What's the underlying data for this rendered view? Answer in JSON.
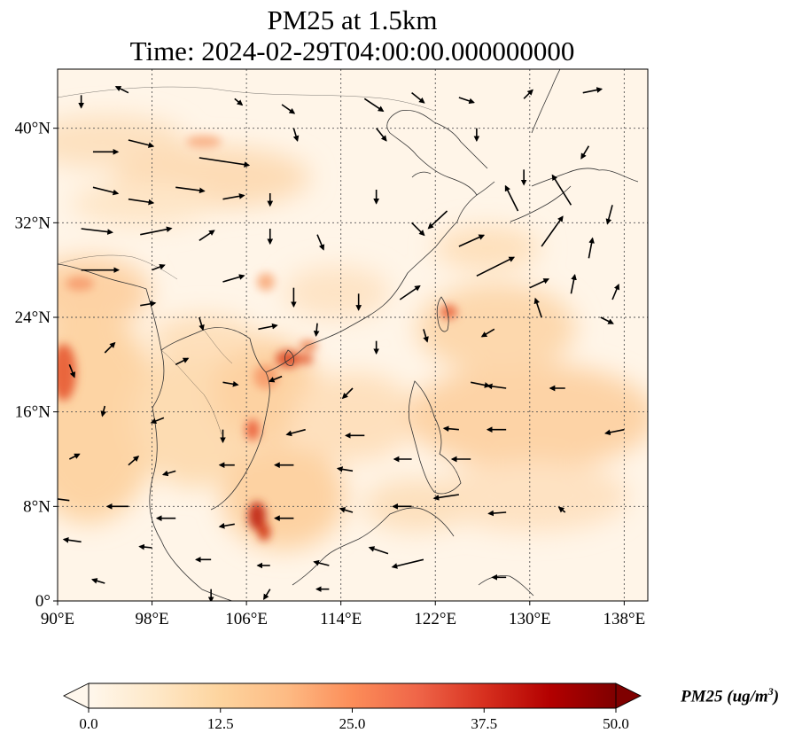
{
  "title": {
    "line1": "PM25 at 1.5km",
    "line2": "Time: 2024-02-29T04:00:00.000000000"
  },
  "map": {
    "lon_range": [
      90,
      140
    ],
    "lat_range": [
      0,
      45
    ],
    "lon_ticks": [
      {
        "value": 90,
        "label": "90°E"
      },
      {
        "value": 98,
        "label": "98°E"
      },
      {
        "value": 106,
        "label": "106°E"
      },
      {
        "value": 114,
        "label": "114°E"
      },
      {
        "value": 122,
        "label": "122°E"
      },
      {
        "value": 130,
        "label": "130°E"
      },
      {
        "value": 138,
        "label": "138°E"
      }
    ],
    "lat_ticks": [
      {
        "value": 0,
        "label": "0°"
      },
      {
        "value": 8,
        "label": "8°N"
      },
      {
        "value": 16,
        "label": "16°N"
      },
      {
        "value": 24,
        "label": "24°N"
      },
      {
        "value": 32,
        "label": "32°N"
      },
      {
        "value": 40,
        "label": "40°N"
      }
    ],
    "gridlines": true
  },
  "colorbar": {
    "label_text": "PM25 (ug/m",
    "label_sup": "3",
    "label_close": ")",
    "min": 0,
    "max": 50,
    "ticks": [
      {
        "value": 0,
        "label": "0.0"
      },
      {
        "value": 12.5,
        "label": "12.5"
      },
      {
        "value": 25,
        "label": "25.0"
      },
      {
        "value": 37.5,
        "label": "37.5"
      },
      {
        "value": 50,
        "label": "50.0"
      }
    ],
    "colormap": "OrRd",
    "colors": [
      "#fff7ec",
      "#fee8c8",
      "#fdd49e",
      "#fdbb84",
      "#fc8d59",
      "#ef6548",
      "#d7301f",
      "#b30000",
      "#7f0000"
    ]
  },
  "chart_data": {
    "type": "heatmap",
    "variable": "PM25",
    "units": "ug/m3",
    "hotspots": [
      {
        "lon": 90.5,
        "lat": 19.5,
        "value": 28
      },
      {
        "lon": 106.6,
        "lat": 7.0,
        "value": 38
      },
      {
        "lon": 107.3,
        "lat": 5.8,
        "value": 32
      },
      {
        "lon": 110.0,
        "lat": 20.0,
        "value": 27
      },
      {
        "lon": 112.0,
        "lat": 21.7,
        "value": 24
      },
      {
        "lon": 105.8,
        "lat": 14.8,
        "value": 25
      },
      {
        "lon": 124.5,
        "lat": 24.7,
        "value": 27
      },
      {
        "lon": 107.5,
        "lat": 16.5,
        "value": 18
      },
      {
        "lon": 93.0,
        "lat": 27.0,
        "value": 16
      },
      {
        "lon": 110.0,
        "lat": 37.0,
        "value": 15
      }
    ],
    "wind_vectors": [
      {
        "lon": 92,
        "lat": 42.8,
        "u": 0,
        "v": -1
      },
      {
        "lon": 96,
        "lat": 43,
        "u": -1,
        "v": 0.5
      },
      {
        "lon": 105,
        "lat": 42.5,
        "u": 0.6,
        "v": -0.5
      },
      {
        "lon": 109,
        "lat": 42,
        "u": 1,
        "v": -0.7
      },
      {
        "lon": 116,
        "lat": 42.5,
        "u": 1.5,
        "v": -1
      },
      {
        "lon": 120,
        "lat": 43,
        "u": 1,
        "v": -0.8
      },
      {
        "lon": 124,
        "lat": 42.6,
        "u": 1.2,
        "v": -0.4
      },
      {
        "lon": 129.5,
        "lat": 42.5,
        "u": 0.7,
        "v": 0.7
      },
      {
        "lon": 134.5,
        "lat": 43,
        "u": 1.5,
        "v": 0.3
      },
      {
        "lon": 93,
        "lat": 38,
        "u": 2,
        "v": 0
      },
      {
        "lon": 96,
        "lat": 39,
        "u": 2,
        "v": -0.5
      },
      {
        "lon": 102,
        "lat": 37.5,
        "u": 4,
        "v": -0.6
      },
      {
        "lon": 110,
        "lat": 40,
        "u": 0.3,
        "v": -1
      },
      {
        "lon": 117,
        "lat": 40,
        "u": 0.8,
        "v": -1
      },
      {
        "lon": 125.5,
        "lat": 40,
        "u": 0,
        "v": -1
      },
      {
        "lon": 129.5,
        "lat": 36.5,
        "u": 0,
        "v": -1.2
      },
      {
        "lon": 135,
        "lat": 38.5,
        "u": -0.6,
        "v": -1
      },
      {
        "lon": 93,
        "lat": 35,
        "u": 2,
        "v": -0.5
      },
      {
        "lon": 96,
        "lat": 34,
        "u": 2,
        "v": -0.3
      },
      {
        "lon": 100,
        "lat": 35,
        "u": 2.3,
        "v": -0.3
      },
      {
        "lon": 104,
        "lat": 34,
        "u": 1.7,
        "v": 0.3
      },
      {
        "lon": 108,
        "lat": 34.5,
        "u": 0,
        "v": -1
      },
      {
        "lon": 117,
        "lat": 34.8,
        "u": 0,
        "v": -1.1
      },
      {
        "lon": 123,
        "lat": 33,
        "u": -1.5,
        "v": -1.4
      },
      {
        "lon": 129,
        "lat": 33,
        "u": -1,
        "v": 2
      },
      {
        "lon": 133.5,
        "lat": 33.5,
        "u": -1.5,
        "v": 2.4
      },
      {
        "lon": 137,
        "lat": 33.5,
        "u": -0.4,
        "v": -1.5
      },
      {
        "lon": 92,
        "lat": 31.5,
        "u": 2.5,
        "v": -0.3
      },
      {
        "lon": 97,
        "lat": 31,
        "u": 2.5,
        "v": 0.5
      },
      {
        "lon": 102,
        "lat": 30.5,
        "u": 1.2,
        "v": 0.8
      },
      {
        "lon": 108,
        "lat": 31.5,
        "u": 0,
        "v": -1.2
      },
      {
        "lon": 112,
        "lat": 31,
        "u": 0.5,
        "v": -1.2
      },
      {
        "lon": 120,
        "lat": 32,
        "u": 1,
        "v": -1
      },
      {
        "lon": 124,
        "lat": 30,
        "u": 2,
        "v": 0.9
      },
      {
        "lon": 131,
        "lat": 30,
        "u": 1.7,
        "v": 2.4
      },
      {
        "lon": 135,
        "lat": 29,
        "u": 0.3,
        "v": 1.6
      },
      {
        "lon": 92,
        "lat": 28,
        "u": 3,
        "v": 0
      },
      {
        "lon": 98,
        "lat": 28,
        "u": 1,
        "v": 0.4
      },
      {
        "lon": 104,
        "lat": 27,
        "u": 1.7,
        "v": 0.5
      },
      {
        "lon": 110,
        "lat": 26.5,
        "u": 0,
        "v": -1.5
      },
      {
        "lon": 115.5,
        "lat": 26,
        "u": 0,
        "v": -1.3
      },
      {
        "lon": 119,
        "lat": 25.5,
        "u": 1.6,
        "v": 1.1
      },
      {
        "lon": 125.5,
        "lat": 27.5,
        "u": 3,
        "v": 1.5
      },
      {
        "lon": 130,
        "lat": 26.5,
        "u": 1.5,
        "v": 0.7
      },
      {
        "lon": 133.5,
        "lat": 26,
        "u": 0.3,
        "v": 1.5
      },
      {
        "lon": 137,
        "lat": 25.5,
        "u": 0.5,
        "v": 1.2
      },
      {
        "lon": 97,
        "lat": 25,
        "u": 1.2,
        "v": 0.2
      },
      {
        "lon": 102,
        "lat": 24,
        "u": 0.3,
        "v": -1
      },
      {
        "lon": 107,
        "lat": 23,
        "u": 1.5,
        "v": 0.3
      },
      {
        "lon": 112,
        "lat": 23.5,
        "u": -0.1,
        "v": -1
      },
      {
        "lon": 117,
        "lat": 22,
        "u": 0,
        "v": -1
      },
      {
        "lon": 121,
        "lat": 23,
        "u": 0.3,
        "v": -1
      },
      {
        "lon": 127,
        "lat": 23,
        "u": -1,
        "v": -0.6
      },
      {
        "lon": 131,
        "lat": 24,
        "u": -0.5,
        "v": 1.5
      },
      {
        "lon": 136,
        "lat": 24,
        "u": 1,
        "v": -0.5
      },
      {
        "lon": 91,
        "lat": 20,
        "u": 0.4,
        "v": -1
      },
      {
        "lon": 94,
        "lat": 21,
        "u": 0.8,
        "v": 0.8
      },
      {
        "lon": 100,
        "lat": 20,
        "u": 1,
        "v": 0.5
      },
      {
        "lon": 104,
        "lat": 18.5,
        "u": 1.2,
        "v": -0.2
      },
      {
        "lon": 109,
        "lat": 19,
        "u": -1,
        "v": -0.4
      },
      {
        "lon": 115,
        "lat": 18,
        "u": -0.8,
        "v": -0.8
      },
      {
        "lon": 125,
        "lat": 18.5,
        "u": 1.5,
        "v": -0.3
      },
      {
        "lon": 128,
        "lat": 18,
        "u": -1.5,
        "v": 0.2
      },
      {
        "lon": 133,
        "lat": 18,
        "u": -1.2,
        "v": 0
      },
      {
        "lon": 94,
        "lat": 16.5,
        "u": -0.2,
        "v": -0.8
      },
      {
        "lon": 99,
        "lat": 15.5,
        "u": -1,
        "v": -0.4
      },
      {
        "lon": 104,
        "lat": 14.5,
        "u": 0,
        "v": -1
      },
      {
        "lon": 111,
        "lat": 14.5,
        "u": -1.5,
        "v": -0.4
      },
      {
        "lon": 116,
        "lat": 14,
        "u": -1.5,
        "v": 0
      },
      {
        "lon": 124,
        "lat": 14.5,
        "u": -1.2,
        "v": 0.1
      },
      {
        "lon": 128,
        "lat": 14.5,
        "u": -1.5,
        "v": 0
      },
      {
        "lon": 138,
        "lat": 14.5,
        "u": -1.5,
        "v": -0.3
      },
      {
        "lon": 91,
        "lat": 12,
        "u": 0.8,
        "v": 0.4
      },
      {
        "lon": 96,
        "lat": 11.5,
        "u": 0.8,
        "v": 0.7
      },
      {
        "lon": 100,
        "lat": 11,
        "u": -1,
        "v": -0.3
      },
      {
        "lon": 105,
        "lat": 11.5,
        "u": -1.2,
        "v": 0
      },
      {
        "lon": 110,
        "lat": 11.5,
        "u": -1.5,
        "v": 0
      },
      {
        "lon": 115,
        "lat": 11,
        "u": -1.2,
        "v": 0.2
      },
      {
        "lon": 120,
        "lat": 12,
        "u": -1.4,
        "v": 0
      },
      {
        "lon": 125,
        "lat": 12,
        "u": -1.5,
        "v": 0
      },
      {
        "lon": 91,
        "lat": 8.5,
        "u": -1.5,
        "v": 0.2
      },
      {
        "lon": 96,
        "lat": 8,
        "u": -1.7,
        "v": 0
      },
      {
        "lon": 100,
        "lat": 7,
        "u": -1.5,
        "v": 0
      },
      {
        "lon": 105,
        "lat": 6.5,
        "u": -1.2,
        "v": -0.2
      },
      {
        "lon": 110,
        "lat": 7,
        "u": -1.5,
        "v": 0
      },
      {
        "lon": 115,
        "lat": 7.5,
        "u": -1,
        "v": 0.3
      },
      {
        "lon": 120,
        "lat": 8,
        "u": -1.5,
        "v": 0
      },
      {
        "lon": 124,
        "lat": 9,
        "u": -2,
        "v": -0.3
      },
      {
        "lon": 128,
        "lat": 7.5,
        "u": -1.4,
        "v": -0.1
      },
      {
        "lon": 133,
        "lat": 7.5,
        "u": -0.5,
        "v": 0.4
      },
      {
        "lon": 92,
        "lat": 5,
        "u": -1.4,
        "v": 0.2
      },
      {
        "lon": 98,
        "lat": 4.5,
        "u": -1,
        "v": 0.1
      },
      {
        "lon": 103,
        "lat": 3.5,
        "u": -1.2,
        "v": 0
      },
      {
        "lon": 108,
        "lat": 3,
        "u": -1,
        "v": 0
      },
      {
        "lon": 113,
        "lat": 3,
        "u": -1.2,
        "v": 0.3
      },
      {
        "lon": 118,
        "lat": 4,
        "u": -1.5,
        "v": 0.5
      },
      {
        "lon": 121,
        "lat": 3.5,
        "u": -2.5,
        "v": -0.6
      },
      {
        "lon": 128,
        "lat": 2,
        "u": -1.1,
        "v": 0
      },
      {
        "lon": 94,
        "lat": 1.5,
        "u": -1,
        "v": 0.3
      },
      {
        "lon": 103,
        "lat": 1,
        "u": 0,
        "v": -1
      },
      {
        "lon": 108,
        "lat": 1,
        "u": -0.5,
        "v": -0.8
      },
      {
        "lon": 113,
        "lat": 1,
        "u": -1,
        "v": 0
      }
    ]
  }
}
